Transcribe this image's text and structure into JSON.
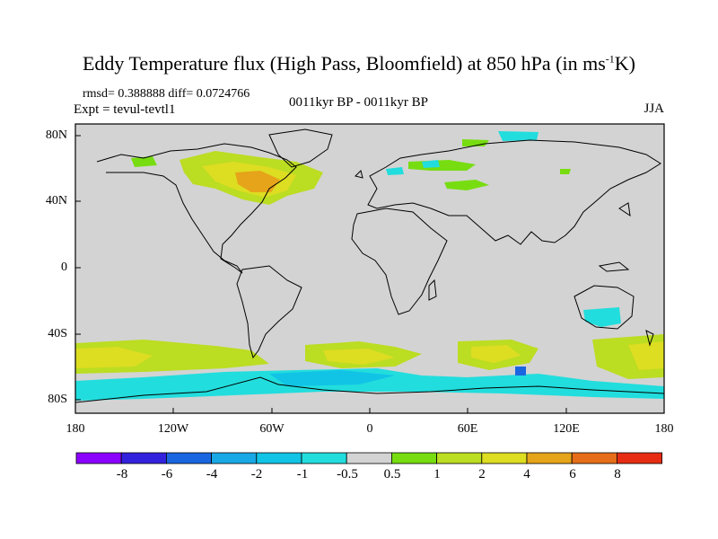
{
  "title_main": "Eddy Temperature flux (High Pass, Bloomfield) at 850 hPa (in ms",
  "title_sup": "-1",
  "title_end": "K)",
  "stats": "rmsd= 0.388888 diff= 0.0724766",
  "expt": "Expt = tevul-tevtl1",
  "period": "0011kyr BP - 0011kyr BP",
  "season": "JJA",
  "lat_labels": [
    "80N",
    "40N",
    "0",
    "40S",
    "80S"
  ],
  "lon_labels": [
    "180",
    "120W",
    "60W",
    "0",
    "60E",
    "120E",
    "180"
  ],
  "colorbar": {
    "labels": [
      "-8",
      "-6",
      "-4",
      "-2",
      "-1",
      "-0.5",
      "0.5",
      "1",
      "2",
      "4",
      "6",
      "8"
    ],
    "colors": [
      "#8b00ff",
      "#3322dd",
      "#1a66e0",
      "#19a8e6",
      "#11c4e6",
      "#22dddd",
      "#d3d3d3",
      "#77dd11",
      "#bbdd22",
      "#dddd22",
      "#e6a41a",
      "#e66d1a",
      "#e62d14"
    ]
  }
}
